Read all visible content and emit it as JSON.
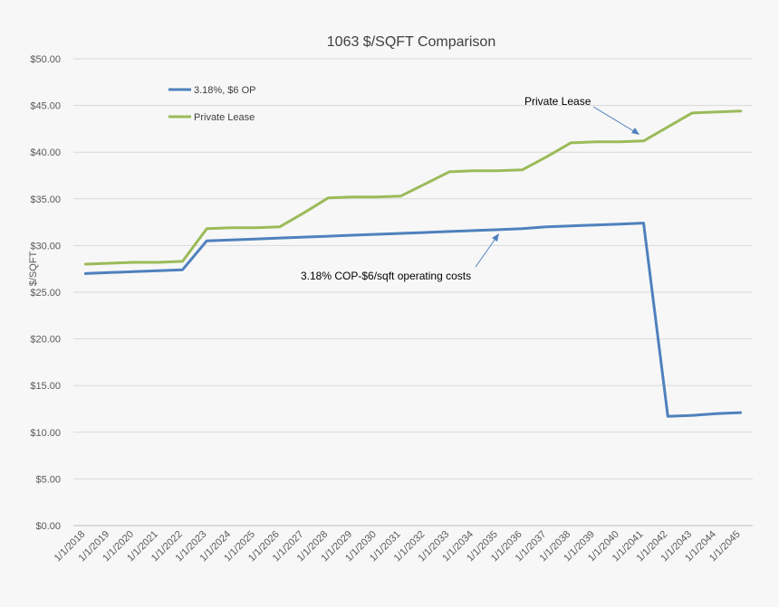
{
  "chart_data": {
    "type": "line",
    "title": "1063 $/SQFT Comparison",
    "xlabel": "",
    "ylabel": "$/SQFT",
    "ylim": [
      0,
      50
    ],
    "y_ticks": [
      "$0.00",
      "$5.00",
      "$10.00",
      "$15.00",
      "$20.00",
      "$25.00",
      "$30.00",
      "$35.00",
      "$40.00",
      "$45.00",
      "$50.00"
    ],
    "grid": true,
    "legend_position": "top-left",
    "categories": [
      "1/1/2018",
      "1/1/2019",
      "1/1/2020",
      "1/1/2021",
      "1/1/2022",
      "1/1/2023",
      "1/1/2024",
      "1/1/2025",
      "1/1/2026",
      "1/1/2027",
      "1/1/2028",
      "1/1/2029",
      "1/1/2030",
      "1/1/2031",
      "1/1/2032",
      "1/1/2033",
      "1/1/2034",
      "1/1/2035",
      "1/1/2036",
      "1/1/2037",
      "1/1/2038",
      "1/1/2039",
      "1/1/2040",
      "1/1/2041",
      "1/1/2042",
      "1/1/2043",
      "1/1/2044",
      "1/1/2045"
    ],
    "series": [
      {
        "name": "3.18%, $6 OP",
        "color": "#4f81bd",
        "values": [
          27.0,
          27.1,
          27.2,
          27.3,
          27.4,
          30.5,
          30.6,
          30.7,
          30.8,
          30.9,
          31.0,
          31.1,
          31.2,
          31.3,
          31.4,
          31.5,
          31.6,
          31.7,
          31.8,
          32.0,
          32.1,
          32.2,
          32.3,
          32.4,
          11.7,
          11.8,
          12.0,
          12.1
        ]
      },
      {
        "name": "Private Lease",
        "color": "#9bbb59",
        "values": [
          28.0,
          28.1,
          28.2,
          28.2,
          28.3,
          31.8,
          31.9,
          31.9,
          32.0,
          33.5,
          35.1,
          35.2,
          35.2,
          35.3,
          36.6,
          37.9,
          38.0,
          38.0,
          38.1,
          39.5,
          41.0,
          41.1,
          41.1,
          41.2,
          42.7,
          44.2,
          44.3,
          44.4
        ]
      }
    ],
    "annotations": [
      {
        "text": "Private Lease",
        "series": "Private Lease"
      },
      {
        "text": "3.18% COP-$6/sqft operating costs",
        "series": "3.18%, $6 OP"
      }
    ]
  }
}
